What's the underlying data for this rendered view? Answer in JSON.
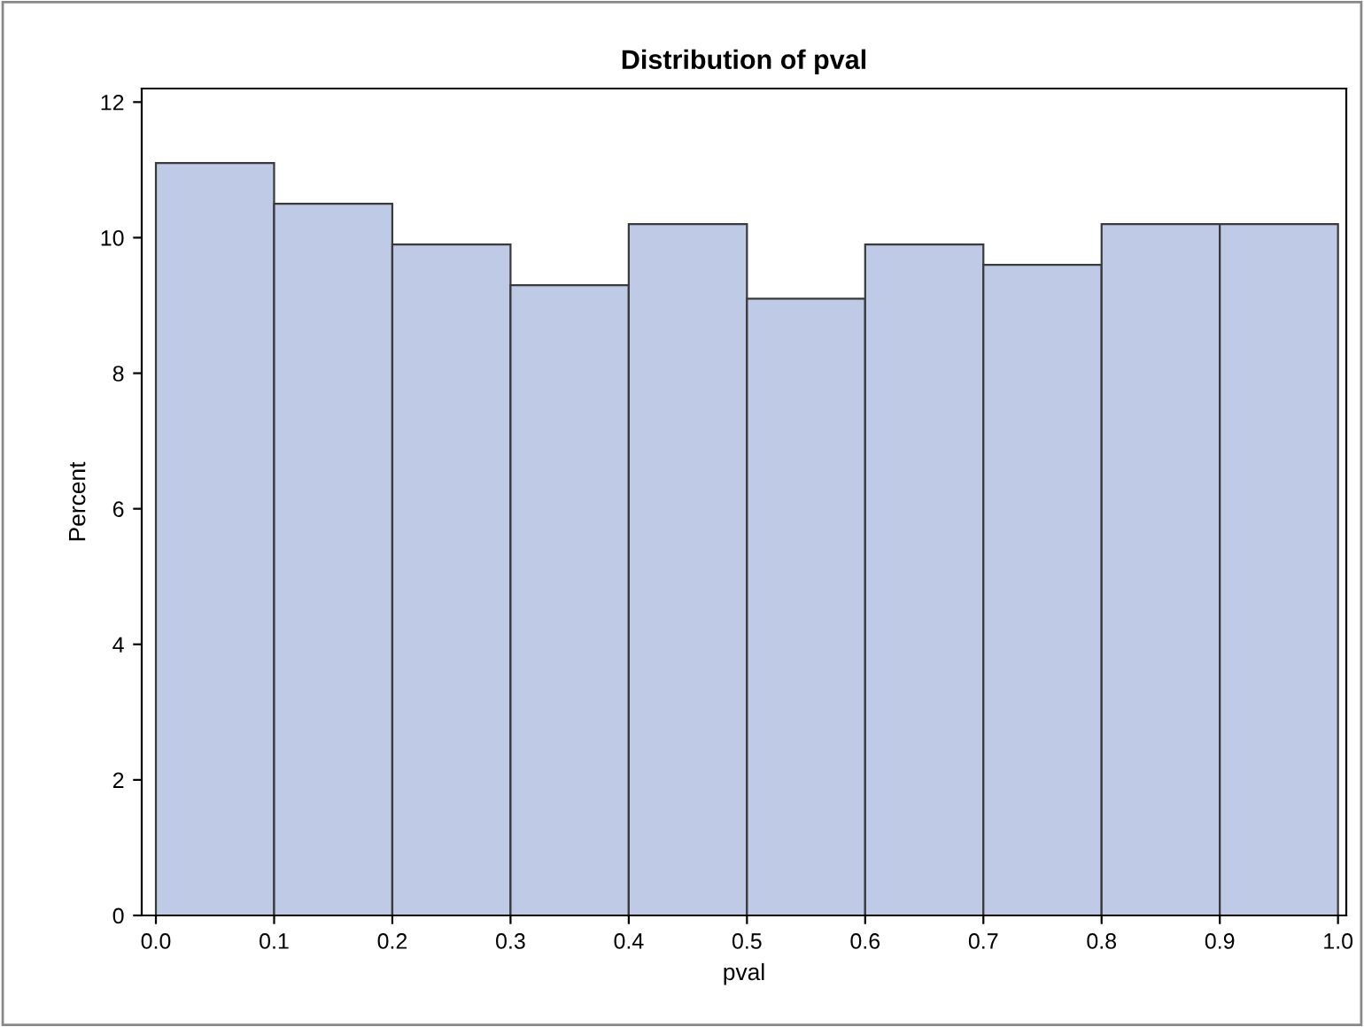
{
  "chart_data": {
    "type": "histogram",
    "title": "Distribution of pval",
    "xlabel": "pval",
    "ylabel": "Percent",
    "bins": [
      0.0,
      0.1,
      0.2,
      0.3,
      0.4,
      0.5,
      0.6,
      0.7,
      0.8,
      0.9,
      1.0
    ],
    "values": [
      11.1,
      10.5,
      9.9,
      9.3,
      10.2,
      9.1,
      9.9,
      9.6,
      10.2,
      10.2
    ],
    "color": "#bfcae6",
    "xlim": [
      -0.012,
      1.007
    ],
    "xticks": [
      {
        "value": 0.0,
        "label": "0.0"
      },
      0.1,
      0.2,
      0.3,
      0.4,
      0.5,
      0.6,
      0.7,
      0.8,
      0.9,
      {
        "value": 1.0,
        "label": "1.0"
      }
    ],
    "ylim": [
      0,
      12.2
    ],
    "yticks": [
      0,
      2,
      4,
      6,
      8,
      10,
      12
    ],
    "grid": false,
    "legend": false
  }
}
